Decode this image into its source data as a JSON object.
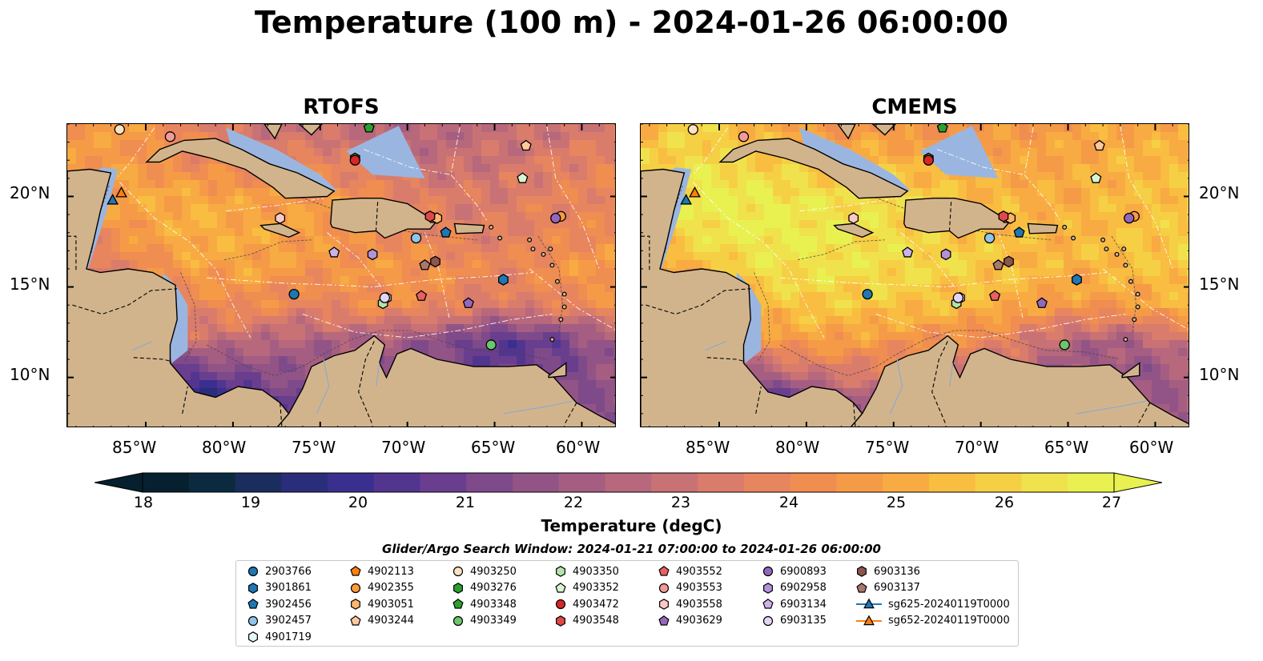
{
  "title": "Temperature (100 m) - 2024-01-26 06:00:00",
  "panels": [
    {
      "title": "RTOFS",
      "palette": "rtofs"
    },
    {
      "title": "CMEMS",
      "palette": "cmems"
    }
  ],
  "lat_labels": [
    "20°N",
    "15°N",
    "10°N"
  ],
  "lon_labels": [
    "85°W",
    "80°W",
    "75°W",
    "70°W",
    "65°W",
    "60°W"
  ],
  "colorbar": {
    "label": "Temperature (degC)",
    "ticks": [
      "18",
      "19",
      "20",
      "21",
      "22",
      "23",
      "24",
      "25",
      "26",
      "27"
    ],
    "min": 18,
    "max": 27,
    "extend": "both",
    "colors": [
      "#06202f",
      "#0b2a3f",
      "#1b2d5c",
      "#2a2e7a",
      "#3a2f8f",
      "#52358f",
      "#6a3e8e",
      "#7e4a8a",
      "#925486",
      "#a55e82",
      "#b8687c",
      "#c87275",
      "#d97c6b",
      "#e7855e",
      "#f08d51",
      "#f59b47",
      "#f7ab42",
      "#f8bd41",
      "#f6d044",
      "#f0e24c",
      "#e8f150"
    ]
  },
  "legend": {
    "title": "Glider/Argo Search Window: 2024-01-21 07:00:00 to 2024-01-26 06:00:00",
    "columns": [
      [
        {
          "label": "2903766",
          "marker": "circle",
          "color": "#1f77b4"
        },
        {
          "label": "3901861",
          "marker": "hexagon",
          "color": "#1f77b4"
        },
        {
          "label": "3902456",
          "marker": "pentagon",
          "color": "#1f77b4"
        },
        {
          "label": "3902457",
          "marker": "circle",
          "color": "#8ec6e9"
        },
        {
          "label": "4901719",
          "marker": "hexagon",
          "color": "#e8f6fb"
        }
      ],
      [
        {
          "label": "4902113",
          "marker": "pentagon",
          "color": "#ff7f0e"
        },
        {
          "label": "4902355",
          "marker": "circle",
          "color": "#fd9a3a"
        },
        {
          "label": "4903051",
          "marker": "hexagon",
          "color": "#fdb46c"
        },
        {
          "label": "4903244",
          "marker": "pentagon",
          "color": "#fdc99a"
        }
      ],
      [
        {
          "label": "4903250",
          "marker": "circle",
          "color": "#fde2c4"
        },
        {
          "label": "4903276",
          "marker": "hexagon",
          "color": "#2ca02c"
        },
        {
          "label": "4903348",
          "marker": "pentagon",
          "color": "#2ca02c"
        },
        {
          "label": "4903349",
          "marker": "circle",
          "color": "#6cc66c"
        }
      ],
      [
        {
          "label": "4903350",
          "marker": "hexagon",
          "color": "#b2e6a8"
        },
        {
          "label": "4903352",
          "marker": "pentagon",
          "color": "#d9f5cf"
        },
        {
          "label": "4903472",
          "marker": "circle",
          "color": "#d62728"
        },
        {
          "label": "4903548",
          "marker": "hexagon",
          "color": "#e04848"
        }
      ],
      [
        {
          "label": "4903552",
          "marker": "pentagon",
          "color": "#e86060"
        },
        {
          "label": "4903553",
          "marker": "circle",
          "color": "#f29a9a"
        },
        {
          "label": "4903558",
          "marker": "hexagon",
          "color": "#fbc8c8"
        },
        {
          "label": "4903629",
          "marker": "pentagon",
          "color": "#9467bd"
        }
      ],
      [
        {
          "label": "6900893",
          "marker": "circle",
          "color": "#9467bd"
        },
        {
          "label": "6902958",
          "marker": "hexagon",
          "color": "#b392d6"
        },
        {
          "label": "6903134",
          "marker": "pentagon",
          "color": "#cbb3ea"
        },
        {
          "label": "6903135",
          "marker": "circle",
          "color": "#e4d4f6"
        }
      ],
      [
        {
          "label": "6903136",
          "marker": "hexagon",
          "color": "#8c564b"
        },
        {
          "label": "6903137",
          "marker": "pentagon",
          "color": "#a8786d"
        },
        {
          "label": "sg625-20240119T0000",
          "marker": "triangle-line",
          "color": "#1f77b4"
        },
        {
          "label": "sg652-20240119T0000",
          "marker": "triangle-line",
          "color": "#ff7f0e"
        }
      ]
    ]
  },
  "floats": [
    {
      "id": "2903766",
      "lon": -76.5,
      "lat": 14.6
    },
    {
      "id": "3901861",
      "lon": -64.5,
      "lat": 15.4
    },
    {
      "id": "3902456",
      "lon": -67.8,
      "lat": 18.0
    },
    {
      "id": "3902457",
      "lon": -69.5,
      "lat": 17.7
    },
    {
      "id": "4901719",
      "lon": -71.2,
      "lat": 14.4
    },
    {
      "id": "4902113",
      "lon": -68.5,
      "lat": 18.8
    },
    {
      "id": "4902355",
      "lon": -61.2,
      "lat": 18.9
    },
    {
      "id": "4903051",
      "lon": -68.3,
      "lat": 18.8
    },
    {
      "id": "4903244",
      "lon": -63.2,
      "lat": 22.8
    },
    {
      "id": "4903250",
      "lon": -86.5,
      "lat": 23.7
    },
    {
      "id": "4903276",
      "lon": -73.0,
      "lat": 22.1
    },
    {
      "id": "4903348",
      "lon": -72.2,
      "lat": 23.8
    },
    {
      "id": "4903349",
      "lon": -65.2,
      "lat": 11.8
    },
    {
      "id": "4903350",
      "lon": -71.4,
      "lat": 14.1
    },
    {
      "id": "4903352",
      "lon": -63.4,
      "lat": 21.0
    },
    {
      "id": "4903472",
      "lon": -73.0,
      "lat": 22.0
    },
    {
      "id": "4903548",
      "lon": -68.7,
      "lat": 18.9
    },
    {
      "id": "4903552",
      "lon": -69.2,
      "lat": 14.5
    },
    {
      "id": "4903553",
      "lon": -83.6,
      "lat": 23.3
    },
    {
      "id": "4903558",
      "lon": -77.3,
      "lat": 18.8
    },
    {
      "id": "4903629",
      "lon": -66.5,
      "lat": 14.1
    },
    {
      "id": "6900893",
      "lon": -61.5,
      "lat": 18.8
    },
    {
      "id": "6902958",
      "lon": -72.0,
      "lat": 16.8
    },
    {
      "id": "6903134",
      "lon": -74.2,
      "lat": 16.9
    },
    {
      "id": "6903135",
      "lon": -71.3,
      "lat": 14.4
    },
    {
      "id": "6903136",
      "lon": -68.4,
      "lat": 16.4
    },
    {
      "id": "6903137",
      "lon": -69.0,
      "lat": 16.2
    },
    {
      "id": "sg625-20240119T0000",
      "lon": -86.9,
      "lat": 19.8
    },
    {
      "id": "sg652-20240119T0000",
      "lon": -86.4,
      "lat": 20.2
    }
  ]
}
